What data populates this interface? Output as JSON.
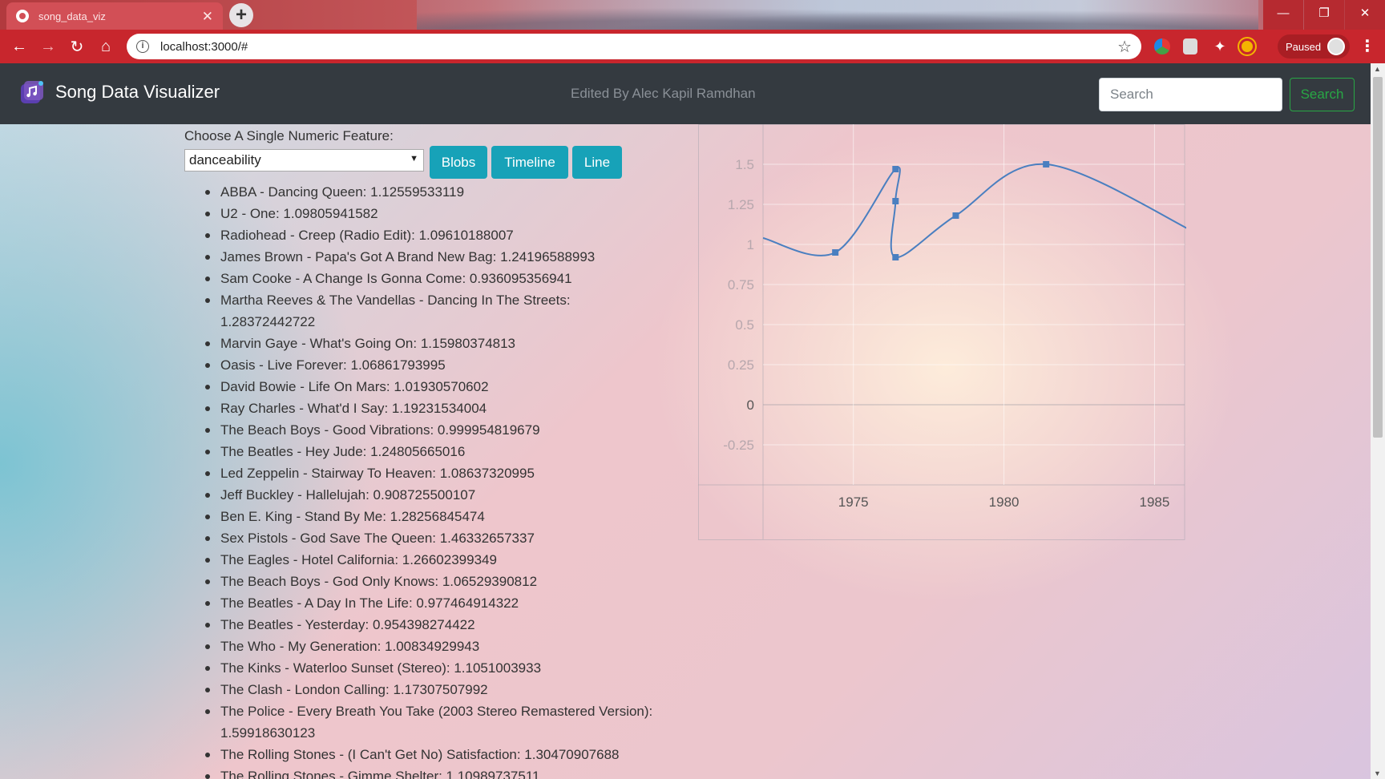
{
  "browser": {
    "tab_title": "song_data_viz",
    "url": "localhost:3000/#",
    "profile_status": "Paused",
    "accent": "#c8262d"
  },
  "navbar": {
    "brand": "Song Data Visualizer",
    "credit": "Edited By Alec Kapil Ramdhan",
    "search_placeholder": "Search",
    "search_button": "Search"
  },
  "controls": {
    "label": "Choose A Single Numeric Feature:",
    "selected_feature": "danceability",
    "buttons": [
      "Blobs",
      "Timeline",
      "Line"
    ],
    "button_color": "#17a2b8"
  },
  "songs": [
    "ABBA - Dancing Queen: 1.12559533119",
    "U2 - One: 1.09805941582",
    "Radiohead - Creep (Radio Edit): 1.09610188007",
    "James Brown - Papa's Got A Brand New Bag: 1.24196588993",
    "Sam Cooke - A Change Is Gonna Come: 0.936095356941",
    "Martha Reeves & The Vandellas - Dancing In The Streets: 1.28372442722",
    "Marvin Gaye - What's Going On: 1.15980374813",
    "Oasis - Live Forever: 1.06861793995",
    "David Bowie - Life On Mars: 1.01930570602",
    "Ray Charles - What'd I Say: 1.19231534004",
    "The Beach Boys - Good Vibrations: 0.999954819679",
    "The Beatles - Hey Jude: 1.24805665016",
    "Led Zeppelin - Stairway To Heaven: 1.08637320995",
    "Jeff Buckley - Hallelujah: 0.908725500107",
    "Ben E. King - Stand By Me: 1.28256845474",
    "Sex Pistols - God Save The Queen: 1.46332657337",
    "The Eagles - Hotel California: 1.26602399349",
    "The Beach Boys - God Only Knows: 1.06529390812",
    "The Beatles - A Day In The Life: 0.977464914322",
    "The Beatles - Yesterday: 0.954398274422",
    "The Who - My Generation: 1.00834929943",
    "The Kinks - Waterloo Sunset (Stereo): 1.1051003933",
    "The Clash - London Calling: 1.17307507992",
    "The Police - Every Breath You Take (2003 Stereo Remastered Version): 1.59918630123",
    "The Rolling Stones - (I Can't Get No) Satisfaction: 1.30470907688",
    "The Rolling Stones - Gimme Shelter: 1.10989737511"
  ],
  "chart_data": {
    "type": "line",
    "x": [
      1974.4,
      1976.4,
      1976.4,
      1976.4,
      1978.4,
      1981.4
    ],
    "y": [
      0.95,
      1.47,
      1.27,
      0.92,
      1.18,
      1.5
    ],
    "curve_start": [
      1972,
      1.04
    ],
    "curve_end": [
      1986.4,
      1.07
    ],
    "x_ticks": [
      "1975",
      "1980",
      "1985"
    ],
    "x_tick_values": [
      1975,
      1980,
      1985
    ],
    "y_ticks": [
      "1.5",
      "1.25",
      "1",
      "0.75",
      "0.5",
      "0.25",
      "0",
      "-0.25"
    ],
    "y_tick_values": [
      1.5,
      1.25,
      1,
      0.75,
      0.5,
      0.25,
      0,
      -0.25
    ],
    "xlim": [
      1972,
      1986
    ],
    "ylim": [
      -0.5,
      1.75
    ],
    "grid": true,
    "line_color": "#4a7fc0"
  }
}
